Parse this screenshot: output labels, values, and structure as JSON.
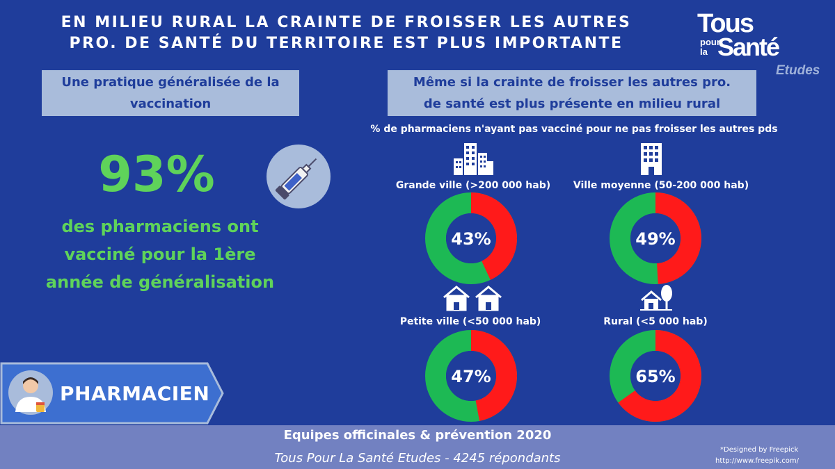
{
  "header": {
    "title_line1": "EN MILIEU RURAL LA CRAINTE DE FROISSER LES AUTRES",
    "title_line2": "PRO. DE SANTÉ DU TERRITOIRE EST PLUS IMPORTANTE"
  },
  "logo": {
    "tous": "Tous",
    "pour": "pour",
    "la": "la",
    "sante": "Santé",
    "etudes": "Etudes"
  },
  "left": {
    "box_line1": "Une pratique généralisée de la",
    "box_line2": "vaccination",
    "big_value": "93%",
    "desc_line1": "des pharmaciens ont",
    "desc_line2": "vacciné pour la 1ère",
    "desc_line3": "année de généralisation"
  },
  "right": {
    "box_line1": "Même si la crainte de froisser les autres pro.",
    "box_line2": "de santé est plus présente en milieu rural",
    "subtitle": "% de pharmaciens n'ayant pas vacciné pour ne pas froisser les autres pds"
  },
  "badge": {
    "label": "PHARMACIEN"
  },
  "footer": {
    "main": "Equipes officinales & prévention 2020",
    "sub": "Tous Pour La Santé Etudes - 4245 répondants",
    "credit1": "*Designed by Freepick",
    "credit2": "http://www.freepik.com/"
  },
  "colors": {
    "background": "#1f3d9b",
    "red": "#ff1a1a",
    "green": "#1db954",
    "highlight_green": "#5fd35a",
    "box": "#a9bcdb",
    "footer": "#7281c1"
  },
  "icons": [
    "syringe-icon",
    "buildings-icon",
    "building-icon",
    "houses-icon",
    "rural-house-icon",
    "pharmacist-avatar-icon"
  ],
  "chart_data": {
    "type": "pie",
    "title": "% de pharmaciens n'ayant pas vacciné pour ne pas froisser les autres pds",
    "categories": [
      "Grande ville (>200 000 hab)",
      "Ville moyenne (50-200 000 hab)",
      "Petite ville (<50 000 hab)",
      "Rural (<5 000 hab)"
    ],
    "values": [
      43,
      49,
      47,
      65
    ],
    "labels": [
      "43%",
      "49%",
      "47%",
      "65%"
    ]
  }
}
